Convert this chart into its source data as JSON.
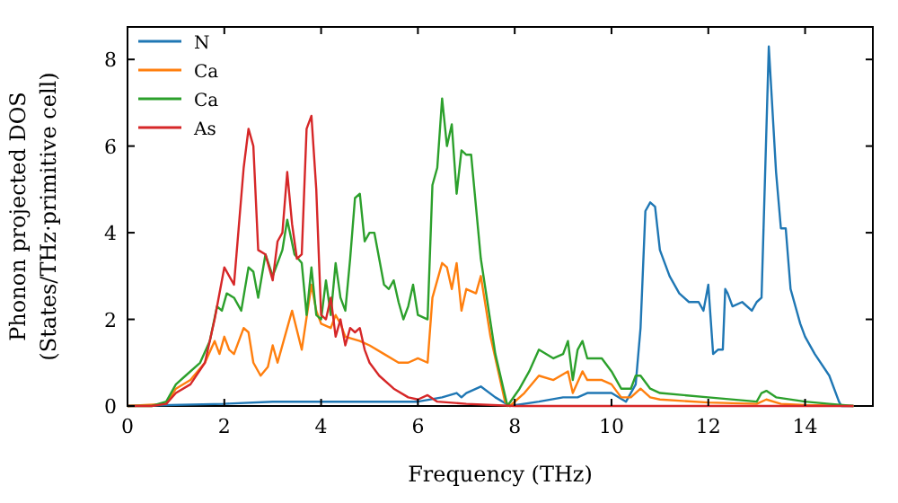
{
  "chart_data": {
    "type": "line",
    "xlabel": "Frequency (THz)",
    "ylabel": "Phonon projected DOS\n(States/THz·primitive cell)",
    "xlim": [
      0,
      15.4
    ],
    "ylim": [
      0,
      8.75
    ],
    "xticks": [
      0,
      2,
      4,
      6,
      8,
      10,
      12,
      14
    ],
    "yticks": [
      0,
      2,
      4,
      6,
      8
    ],
    "grid": false,
    "legend": "top left",
    "series": [
      {
        "name": "N",
        "color": "#1f77b4",
        "x": [
          0,
          2,
          3,
          4,
          5,
          6,
          6.5,
          6.8,
          6.9,
          7.0,
          7.3,
          7.6,
          7.9,
          8.5,
          9.0,
          9.3,
          9.5,
          10.0,
          10.3,
          10.5,
          10.6,
          10.7,
          10.8,
          10.9,
          11.0,
          11.2,
          11.4,
          11.6,
          11.8,
          11.9,
          12.0,
          12.1,
          12.2,
          12.3,
          12.35,
          12.4,
          12.5,
          12.7,
          12.9,
          13.0,
          13.1,
          13.25,
          13.4,
          13.5,
          13.6,
          13.7,
          13.9,
          14.0,
          14.2,
          14.5,
          14.7,
          14.75,
          15
        ],
        "values": [
          0,
          0.05,
          0.1,
          0.1,
          0.1,
          0.1,
          0.2,
          0.3,
          0.2,
          0.3,
          0.45,
          0.2,
          0,
          0.1,
          0.2,
          0.2,
          0.3,
          0.3,
          0.1,
          0.5,
          1.8,
          4.5,
          4.7,
          4.6,
          3.6,
          3.0,
          2.6,
          2.4,
          2.4,
          2.2,
          2.8,
          1.2,
          1.3,
          1.3,
          2.7,
          2.6,
          2.3,
          2.4,
          2.2,
          2.4,
          2.5,
          8.3,
          5.4,
          4.1,
          4.1,
          2.7,
          1.9,
          1.6,
          1.2,
          0.7,
          0.1,
          0,
          0
        ]
      },
      {
        "name": "Ca",
        "color": "#ff7f0e",
        "x": [
          0,
          0.8,
          1.0,
          1.3,
          1.6,
          1.8,
          1.9,
          2.0,
          2.1,
          2.2,
          2.4,
          2.5,
          2.6,
          2.75,
          2.9,
          3.0,
          3.1,
          3.3,
          3.4,
          3.6,
          3.8,
          3.9,
          4.0,
          4.2,
          4.3,
          4.4,
          4.5,
          4.8,
          5.0,
          5.3,
          5.6,
          5.8,
          6.0,
          6.2,
          6.3,
          6.5,
          6.6,
          6.7,
          6.8,
          6.9,
          7.0,
          7.2,
          7.3,
          7.5,
          7.8,
          7.9,
          8.2,
          8.5,
          8.8,
          9.1,
          9.2,
          9.4,
          9.5,
          9.8,
          10.0,
          10.2,
          10.4,
          10.6,
          10.8,
          11,
          12,
          13,
          13.2,
          13.5,
          14,
          15
        ],
        "values": [
          0,
          0.05,
          0.4,
          0.6,
          1.0,
          1.5,
          1.2,
          1.6,
          1.3,
          1.2,
          1.8,
          1.7,
          1.0,
          0.7,
          0.9,
          1.4,
          1.0,
          1.8,
          2.2,
          1.3,
          2.8,
          2.2,
          1.9,
          1.8,
          2.1,
          1.9,
          1.6,
          1.5,
          1.4,
          1.2,
          1.0,
          1.0,
          1.1,
          1.0,
          2.5,
          3.3,
          3.2,
          2.7,
          3.3,
          2.2,
          2.7,
          2.6,
          3.0,
          1.6,
          0.1,
          0,
          0.3,
          0.7,
          0.6,
          0.8,
          0.3,
          0.8,
          0.6,
          0.6,
          0.5,
          0.2,
          0.2,
          0.4,
          0.2,
          0.15,
          0.08,
          0.05,
          0.15,
          0.05,
          0.02,
          0
        ]
      },
      {
        "name": "Ca",
        "color": "#2ca02c",
        "x": [
          0,
          0.5,
          0.8,
          1.0,
          1.2,
          1.5,
          1.7,
          1.85,
          1.95,
          2.05,
          2.2,
          2.35,
          2.5,
          2.6,
          2.7,
          2.85,
          3.0,
          3.2,
          3.3,
          3.45,
          3.6,
          3.7,
          3.8,
          3.9,
          4.0,
          4.1,
          4.2,
          4.3,
          4.4,
          4.5,
          4.6,
          4.7,
          4.8,
          4.9,
          5.0,
          5.1,
          5.3,
          5.4,
          5.5,
          5.6,
          5.7,
          5.8,
          5.9,
          6.0,
          6.2,
          6.3,
          6.4,
          6.5,
          6.6,
          6.7,
          6.8,
          6.9,
          7.0,
          7.1,
          7.3,
          7.6,
          7.85,
          8.1,
          8.3,
          8.5,
          8.8,
          9.0,
          9.1,
          9.2,
          9.3,
          9.4,
          9.5,
          9.8,
          10.0,
          10.2,
          10.4,
          10.5,
          10.6,
          10.8,
          11,
          12,
          13,
          13.1,
          13.2,
          13.4,
          14,
          14.5,
          15
        ],
        "values": [
          0,
          0,
          0.1,
          0.5,
          0.7,
          1.0,
          1.5,
          2.3,
          2.2,
          2.6,
          2.5,
          2.2,
          3.2,
          3.1,
          2.5,
          3.5,
          3.0,
          3.6,
          4.3,
          3.5,
          3.3,
          2.1,
          3.2,
          2.1,
          2.0,
          2.9,
          2.1,
          3.3,
          2.5,
          2.2,
          3.4,
          4.8,
          4.9,
          3.8,
          4.0,
          4.0,
          2.8,
          2.7,
          2.9,
          2.4,
          2.0,
          2.3,
          2.8,
          2.1,
          2.0,
          5.1,
          5.5,
          7.1,
          6.0,
          6.5,
          4.9,
          5.9,
          5.8,
          5.8,
          3.4,
          1.2,
          0,
          0.4,
          0.8,
          1.3,
          1.1,
          1.2,
          1.5,
          0.6,
          1.3,
          1.5,
          1.1,
          1.1,
          0.8,
          0.4,
          0.4,
          0.7,
          0.7,
          0.4,
          0.3,
          0.2,
          0.1,
          0.3,
          0.35,
          0.2,
          0.1,
          0.05,
          0
        ]
      },
      {
        "name": "As",
        "color": "#d62728",
        "x": [
          0,
          0.5,
          0.8,
          1.0,
          1.3,
          1.6,
          1.8,
          2.0,
          2.2,
          2.4,
          2.5,
          2.6,
          2.7,
          2.85,
          3.0,
          3.1,
          3.2,
          3.3,
          3.4,
          3.5,
          3.6,
          3.7,
          3.8,
          3.9,
          4.0,
          4.1,
          4.2,
          4.3,
          4.4,
          4.5,
          4.6,
          4.7,
          4.8,
          4.9,
          5.0,
          5.2,
          5.5,
          5.8,
          6.0,
          6.2,
          6.4,
          7,
          8,
          15
        ],
        "values": [
          0,
          0,
          0.05,
          0.3,
          0.5,
          1.0,
          2.0,
          3.2,
          2.8,
          5.5,
          6.4,
          6.0,
          3.6,
          3.5,
          2.9,
          3.8,
          4.0,
          5.4,
          4.2,
          3.4,
          3.5,
          6.4,
          6.7,
          5.0,
          2.1,
          2.0,
          2.5,
          1.6,
          2.0,
          1.4,
          1.8,
          1.7,
          1.8,
          1.3,
          1.0,
          0.7,
          0.4,
          0.2,
          0.15,
          0.25,
          0.1,
          0.05,
          0,
          0
        ]
      }
    ]
  }
}
